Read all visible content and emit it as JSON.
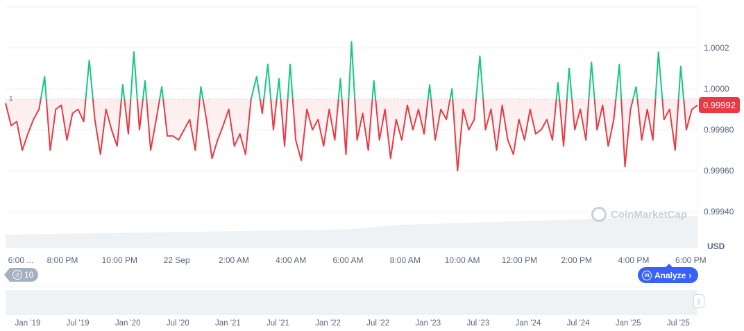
{
  "chart_data": {
    "type": "line",
    "currency": "USD",
    "current_price": "0.99992",
    "baseline_label": "1",
    "baseline_value": 0.99995,
    "ylim": [
      0.99932,
      1.00025
    ],
    "yticks": [
      "1.0002",
      "1.0000",
      "0.99980",
      "0.99960",
      "0.99940"
    ],
    "ytick_values": [
      1.0002,
      1.0,
      0.9998,
      0.9996,
      0.9994
    ],
    "xticks": [
      "6:00 ...",
      "8:00 PM",
      "10:00 PM",
      "22 Sep",
      "2:00 AM",
      "4:00 AM",
      "6:00 AM",
      "8:00 AM",
      "10:00 AM",
      "12:00 PM",
      "2:00 PM",
      "4:00 PM",
      "6:00 PM"
    ],
    "navigator_ticks": [
      "Jan '19",
      "Jul '19",
      "Jan '20",
      "Jul '20",
      "Jan '21",
      "Jul '21",
      "Jan '22",
      "Jul '22",
      "Jan '23",
      "Jul '23",
      "Jan '24",
      "Jul '24",
      "Jan '25",
      "Jul '25"
    ],
    "values": [
      0.99993,
      0.99982,
      0.99984,
      0.9997,
      0.99978,
      0.99985,
      0.9999,
      1.00006,
      0.9997,
      0.9999,
      0.99992,
      0.99975,
      0.99988,
      0.9999,
      0.99984,
      1.00014,
      0.99985,
      0.99968,
      0.9999,
      0.9998,
      0.99972,
      1.00002,
      0.99978,
      1.00018,
      0.9998,
      1.00004,
      0.9997,
      0.99985,
      1.00001,
      0.99977,
      0.99977,
      0.99975,
      0.9998,
      0.99985,
      0.9997,
      1.00001,
      0.99985,
      0.99966,
      0.99975,
      0.99982,
      0.9999,
      0.99972,
      0.99978,
      0.99968,
      0.99995,
      1.00006,
      0.99988,
      1.00012,
      0.9998,
      1.00005,
      0.99972,
      1.00012,
      0.99975,
      0.99965,
      0.9999,
      0.9998,
      0.99985,
      0.99972,
      0.9999,
      0.99975,
      1.00005,
      0.99968,
      1.00023,
      0.99975,
      0.99988,
      0.9997,
      1.00004,
      0.99975,
      0.9999,
      0.99966,
      0.99985,
      0.99975,
      0.99992,
      0.9998,
      0.9999,
      0.99978,
      1.00002,
      0.99975,
      0.9999,
      0.99985,
      1.0,
      0.9996,
      0.9999,
      0.9998,
      0.99985,
      1.00016,
      0.9998,
      0.9999,
      0.9997,
      0.99992,
      0.99975,
      0.99968,
      0.99985,
      0.99975,
      0.9999,
      0.99978,
      0.9998,
      0.99985,
      0.99975,
      1.00003,
      0.99972,
      1.0001,
      0.9998,
      0.9999,
      0.99975,
      1.00013,
      0.9998,
      0.99992,
      0.99972,
      0.99985,
      1.00012,
      0.99962,
      0.9999,
      1.00001,
      0.99975,
      0.9999,
      0.99975,
      1.00018,
      0.99985,
      0.9999,
      0.9997,
      1.00011,
      0.9998,
      0.9999,
      0.99992
    ],
    "colors": {
      "up": "#16c784",
      "down": "#ea3943",
      "fill": "#fde8ea"
    }
  },
  "ui": {
    "history_count": "10",
    "analyze_label": "Analyze",
    "watermark": "CoinMarketCap"
  }
}
